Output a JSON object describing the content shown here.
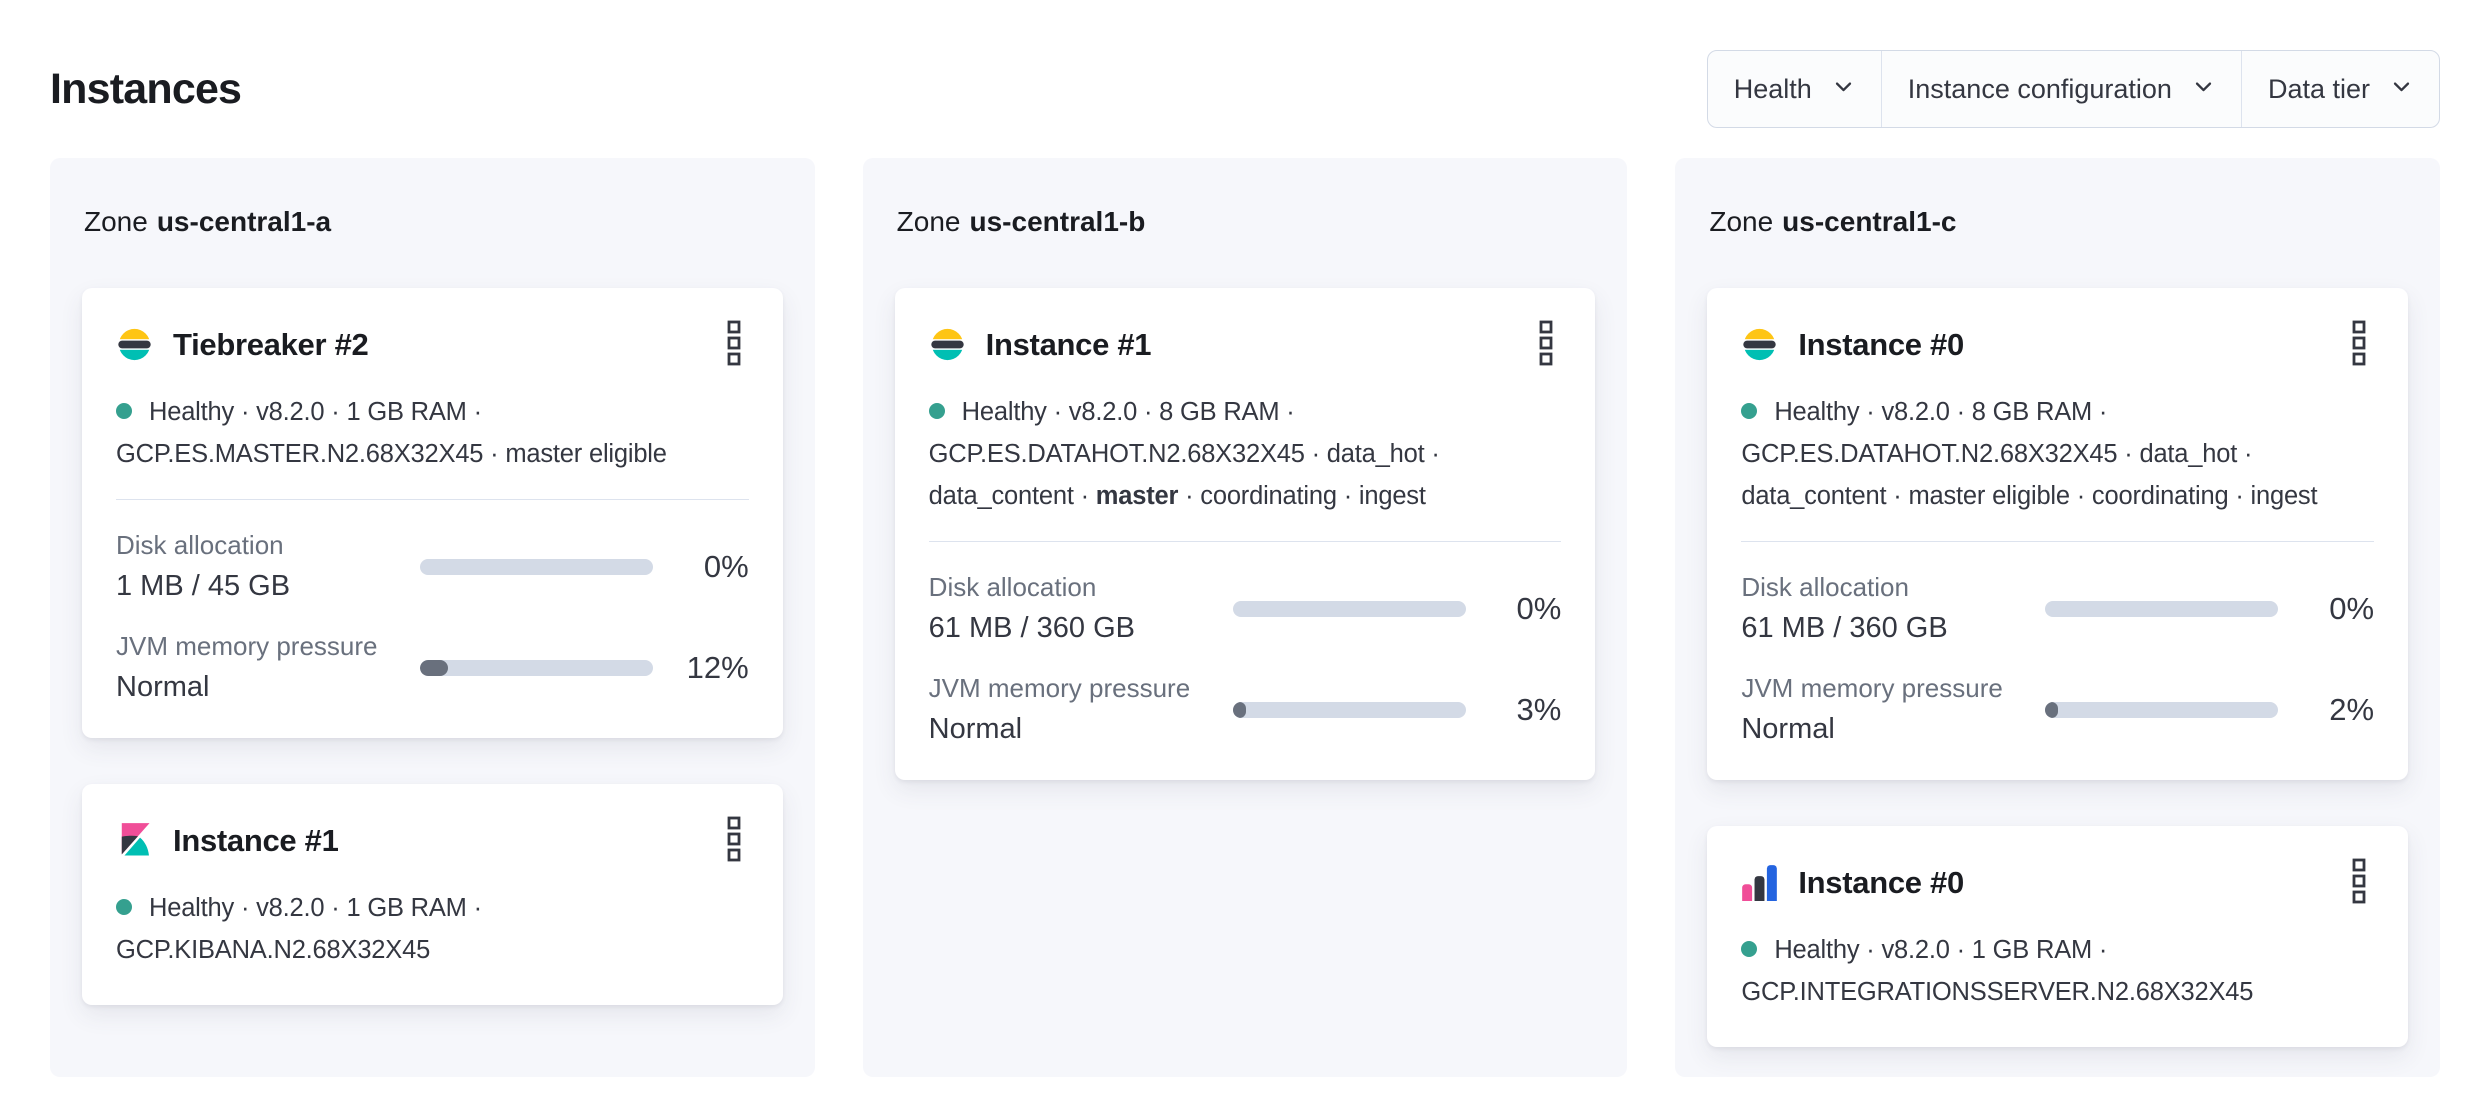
{
  "header": {
    "title": "Instances"
  },
  "filters": [
    {
      "label": "Health"
    },
    {
      "label": "Instance configuration"
    },
    {
      "label": "Data tier"
    }
  ],
  "zones": [
    {
      "label_prefix": "Zone",
      "name": "us-central1-a",
      "cards": [
        {
          "logo": "elasticsearch-logo",
          "title": "Tiebreaker #2",
          "meta_lines": [
            {
              "dot": true,
              "segments": [
                {
                  "text": "Healthy · v8.2.0 · 1 GB RAM ·",
                  "bold": false
                }
              ]
            },
            {
              "dot": false,
              "segments": [
                {
                  "text": "GCP.ES.MASTER.N2.68X32X45 · master eligible",
                  "bold": false
                }
              ]
            }
          ],
          "metrics": [
            {
              "label": "Disk allocation",
              "value": "1 MB / 45 GB",
              "percent": 0,
              "percent_label": "0%"
            },
            {
              "label": "JVM memory pressure",
              "value": "Normal",
              "percent": 12,
              "percent_label": "12%"
            }
          ]
        },
        {
          "logo": "kibana-logo",
          "title": "Instance #1",
          "meta_lines": [
            {
              "dot": true,
              "segments": [
                {
                  "text": "Healthy · v8.2.0 · 1 GB RAM ·",
                  "bold": false
                }
              ]
            },
            {
              "dot": false,
              "segments": [
                {
                  "text": "GCP.KIBANA.N2.68X32X45",
                  "bold": false
                }
              ]
            }
          ],
          "metrics": []
        }
      ]
    },
    {
      "label_prefix": "Zone",
      "name": "us-central1-b",
      "cards": [
        {
          "logo": "elasticsearch-logo",
          "title": "Instance #1",
          "meta_lines": [
            {
              "dot": true,
              "segments": [
                {
                  "text": "Healthy · v8.2.0 · 8 GB RAM ·",
                  "bold": false
                }
              ]
            },
            {
              "dot": false,
              "segments": [
                {
                  "text": "GCP.ES.DATAHOT.N2.68X32X45 · data_hot ·",
                  "bold": false
                }
              ]
            },
            {
              "dot": false,
              "segments": [
                {
                  "text": "data_content · ",
                  "bold": false
                },
                {
                  "text": "master",
                  "bold": true
                },
                {
                  "text": " · coordinating · ingest",
                  "bold": false
                }
              ]
            }
          ],
          "metrics": [
            {
              "label": "Disk allocation",
              "value": "61 MB / 360 GB",
              "percent": 0,
              "percent_label": "0%"
            },
            {
              "label": "JVM memory pressure",
              "value": "Normal",
              "percent": 3,
              "percent_label": "3%"
            }
          ]
        }
      ]
    },
    {
      "label_prefix": "Zone",
      "name": "us-central1-c",
      "cards": [
        {
          "logo": "elasticsearch-logo",
          "title": "Instance #0",
          "meta_lines": [
            {
              "dot": true,
              "segments": [
                {
                  "text": "Healthy · v8.2.0 · 8 GB RAM ·",
                  "bold": false
                }
              ]
            },
            {
              "dot": false,
              "segments": [
                {
                  "text": "GCP.ES.DATAHOT.N2.68X32X45 · data_hot ·",
                  "bold": false
                }
              ]
            },
            {
              "dot": false,
              "segments": [
                {
                  "text": "data_content · master eligible · coordinating · ingest",
                  "bold": false
                }
              ]
            }
          ],
          "metrics": [
            {
              "label": "Disk allocation",
              "value": "61 MB / 360 GB",
              "percent": 0,
              "percent_label": "0%"
            },
            {
              "label": "JVM memory pressure",
              "value": "Normal",
              "percent": 2,
              "percent_label": "2%"
            }
          ]
        },
        {
          "logo": "integrations-server-logo",
          "title": "Instance #0",
          "meta_lines": [
            {
              "dot": true,
              "segments": [
                {
                  "text": "Healthy · v8.2.0 · 1 GB RAM ·",
                  "bold": false
                }
              ]
            },
            {
              "dot": false,
              "segments": [
                {
                  "text": "GCP.INTEGRATIONSSERVER.N2.68X32X45",
                  "bold": false
                }
              ]
            }
          ],
          "metrics": []
        }
      ]
    }
  ],
  "colors": {
    "healthy_dot": "#35a08f",
    "bar_track": "#d3dae6",
    "bar_fill": "#69707d",
    "es_yellow": "#fec514",
    "es_dark": "#343741",
    "es_teal": "#00bfb3",
    "kibana_pink": "#f04e98",
    "integrations_blue": "#2464e0",
    "panel_bg": "#f6f7fb",
    "text_dark": "#343741",
    "text_gray": "#69707d"
  }
}
